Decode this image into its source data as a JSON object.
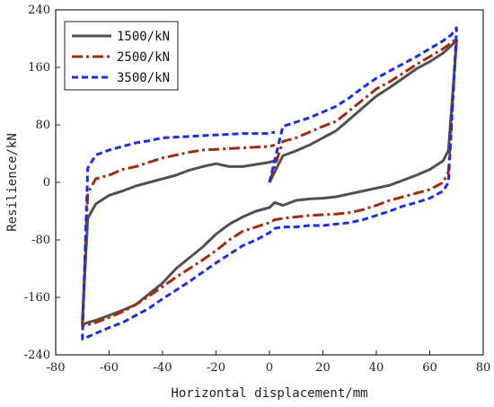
{
  "chart_data": {
    "type": "line",
    "title": "",
    "xlabel": "Horizontal displacement/mm",
    "ylabel": "Resilience/kN",
    "xlim": [
      -80,
      80
    ],
    "ylim": [
      -240,
      240
    ],
    "xticks": [
      -80,
      -60,
      -40,
      -20,
      0,
      20,
      40,
      60,
      80
    ],
    "yticks": [
      -240,
      -160,
      -80,
      0,
      80,
      160,
      240
    ],
    "grid": false,
    "legend_position": "top-left",
    "series": [
      {
        "name": "1500/kN",
        "color": "#505050",
        "dash": "solid",
        "x": [
          0,
          5,
          10,
          15,
          20,
          25,
          30,
          35,
          40,
          45,
          50,
          55,
          60,
          65,
          68,
          70,
          70,
          67,
          65,
          60,
          55,
          50,
          45,
          40,
          35,
          30,
          25,
          20,
          15,
          10,
          5,
          2,
          0,
          -5,
          -10,
          -15,
          -20,
          -25,
          -30,
          -35,
          -40,
          -45,
          -50,
          -55,
          -60,
          -65,
          -68,
          -70,
          -70,
          -68,
          -65,
          -60,
          -55,
          -50,
          -45,
          -40,
          -35,
          -30,
          -25,
          -20,
          -15,
          -10,
          -5,
          0,
          2
        ],
        "y": [
          0,
          37,
          44,
          52,
          62,
          72,
          88,
          104,
          120,
          132,
          145,
          158,
          168,
          180,
          190,
          198,
          196,
          45,
          30,
          18,
          10,
          3,
          -4,
          -8,
          -12,
          -16,
          -20,
          -22,
          -23,
          -25,
          -32,
          -28,
          -35,
          -40,
          -48,
          -58,
          -72,
          -90,
          -105,
          -120,
          -140,
          -155,
          -170,
          -178,
          -185,
          -192,
          -195,
          -198,
          -190,
          -50,
          -30,
          -18,
          -12,
          -5,
          0,
          5,
          10,
          17,
          22,
          26,
          22,
          22,
          25,
          28,
          30
        ]
      },
      {
        "name": "2500/kN",
        "color": "#a52a12",
        "dash": "dashdot",
        "x": [
          0,
          5,
          10,
          15,
          20,
          25,
          30,
          35,
          40,
          45,
          50,
          55,
          60,
          65,
          68,
          70,
          70,
          67,
          65,
          60,
          55,
          50,
          45,
          40,
          35,
          30,
          25,
          20,
          15,
          10,
          5,
          2,
          0,
          -5,
          -10,
          -15,
          -20,
          -25,
          -30,
          -35,
          -40,
          -45,
          -50,
          -55,
          -60,
          -65,
          -68,
          -70,
          -70,
          -68,
          -65,
          -60,
          -55,
          -50,
          -45,
          -40,
          -35,
          -30,
          -25,
          -20,
          -15,
          -10,
          -5,
          0,
          2
        ],
        "y": [
          0,
          57,
          62,
          70,
          78,
          85,
          100,
          115,
          130,
          140,
          152,
          164,
          175,
          186,
          194,
          200,
          200,
          15,
          0,
          -10,
          -15,
          -20,
          -25,
          -32,
          -38,
          -42,
          -44,
          -45,
          -46,
          -48,
          -50,
          -52,
          -56,
          -62,
          -68,
          -80,
          -95,
          -108,
          -120,
          -132,
          -145,
          -158,
          -170,
          -180,
          -188,
          -195,
          -198,
          -200,
          -196,
          -15,
          5,
          10,
          18,
          22,
          28,
          34,
          38,
          42,
          45,
          46,
          47,
          48,
          49,
          50,
          52
        ]
      },
      {
        "name": "3500/kN",
        "color": "#1a2ee6",
        "dash": "dash",
        "x": [
          0,
          5,
          10,
          15,
          20,
          25,
          30,
          35,
          40,
          45,
          50,
          55,
          60,
          65,
          68,
          70,
          70,
          67,
          65,
          60,
          55,
          50,
          45,
          40,
          35,
          30,
          25,
          20,
          15,
          10,
          5,
          2,
          0,
          -5,
          -10,
          -15,
          -20,
          -25,
          -30,
          -35,
          -40,
          -45,
          -50,
          -55,
          -60,
          -65,
          -68,
          -70,
          -70,
          -68,
          -65,
          -60,
          -55,
          -50,
          -45,
          -40,
          -35,
          -30,
          -25,
          -20,
          -15,
          -10,
          -5,
          0,
          2
        ],
        "y": [
          0,
          78,
          84,
          90,
          98,
          106,
          118,
          132,
          145,
          155,
          165,
          175,
          186,
          197,
          205,
          215,
          212,
          0,
          -12,
          -22,
          -28,
          -33,
          -40,
          -46,
          -52,
          -56,
          -58,
          -60,
          -60,
          -62,
          -62,
          -64,
          -70,
          -80,
          -88,
          -100,
          -112,
          -125,
          -138,
          -150,
          -162,
          -175,
          -185,
          -195,
          -202,
          -210,
          -215,
          -218,
          -212,
          20,
          38,
          45,
          50,
          55,
          58,
          62,
          63,
          64,
          65,
          66,
          67,
          68,
          68,
          68,
          70
        ]
      }
    ]
  }
}
